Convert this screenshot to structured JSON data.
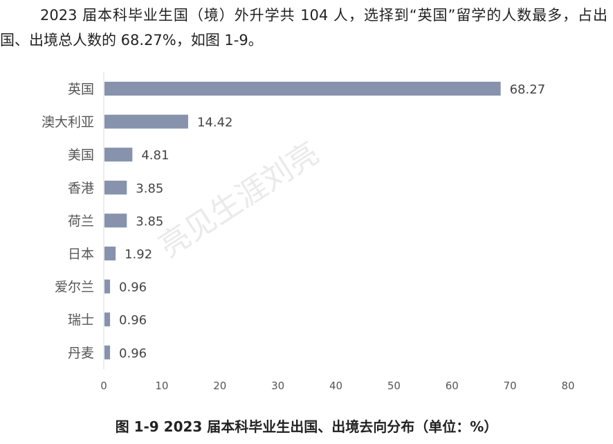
{
  "paragraph": "2023 届本科毕业生国（境）外升学共 104 人，选择到“英国”留学的人数最多，占出国、出境总人数的 68.27%，如图 1-9。",
  "caption": "图  1-9   2023 届本科毕业生出国、出境去向分布（单位：%）",
  "watermark": "亮见生涯刘亮",
  "chart_data": {
    "type": "bar",
    "orientation": "horizontal",
    "title": "图  1-9   2023 届本科毕业生出国、出境去向分布（单位：%）",
    "categories": [
      "英国",
      "澳大利亚",
      "美国",
      "香港",
      "荷兰",
      "日本",
      "爱尔兰",
      "瑞士",
      "丹麦"
    ],
    "values": [
      68.27,
      14.42,
      4.81,
      3.85,
      3.85,
      1.92,
      0.96,
      0.96,
      0.96
    ],
    "value_labels": [
      "68.27",
      "14.42",
      "4.81",
      "3.85",
      "3.85",
      "1.92",
      "0.96",
      "0.96",
      "0.96"
    ],
    "xlim": [
      0,
      80
    ],
    "xticks": [
      "0",
      "10",
      "20",
      "30",
      "40",
      "50",
      "60",
      "70",
      "80"
    ],
    "xlabel": "",
    "ylabel": "",
    "grid": false,
    "bar_color": "#8793ad"
  }
}
